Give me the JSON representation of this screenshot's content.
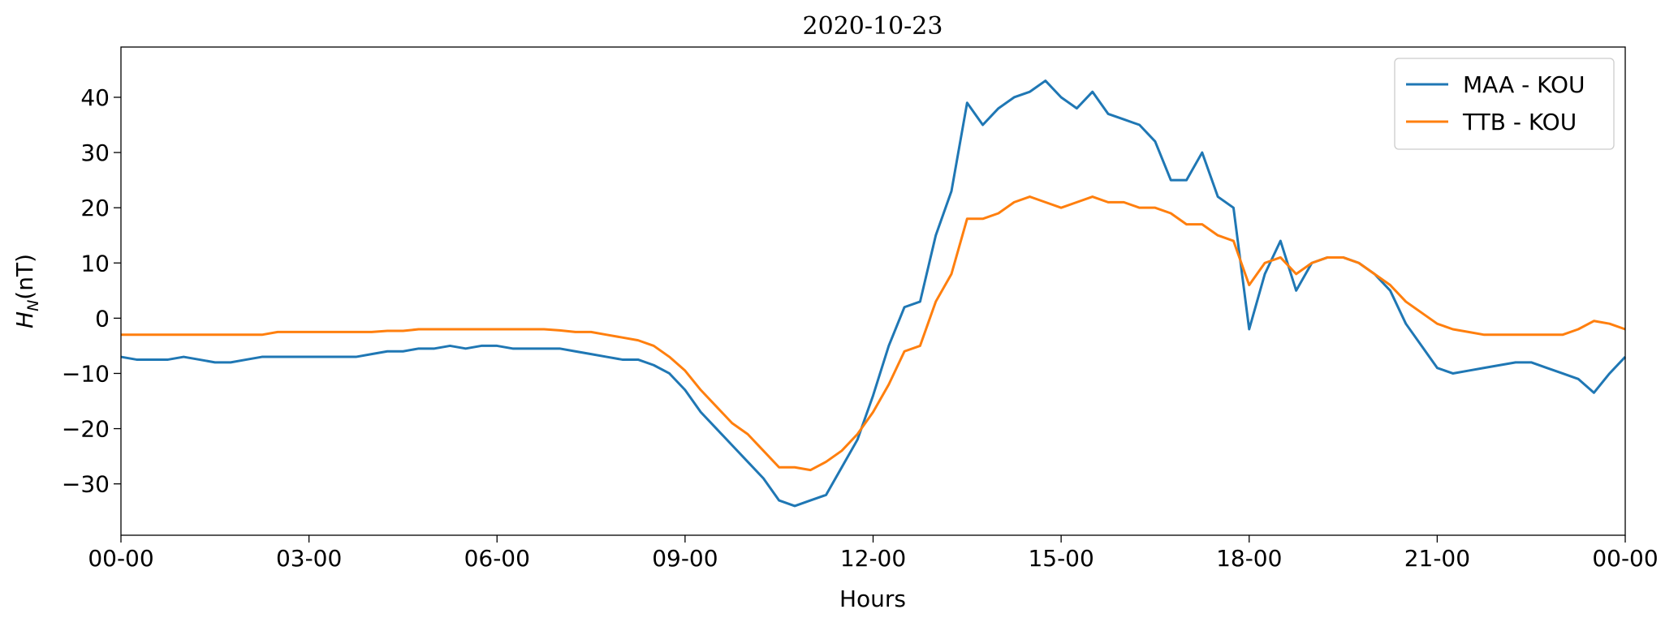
{
  "chart_data": {
    "type": "line",
    "title": "2020-10-23",
    "x_label": "Hours",
    "y_label": {
      "symbol": "H",
      "subscript": "N",
      "unit": "(nT)"
    },
    "legend": "upper right",
    "xlim": [
      0,
      24
    ],
    "ylim": [
      -39.3,
      49.1
    ],
    "xticks": [
      {
        "value": 0,
        "label": "00-00"
      },
      {
        "value": 3,
        "label": "03-00"
      },
      {
        "value": 6,
        "label": "06-00"
      },
      {
        "value": 9,
        "label": "09-00"
      },
      {
        "value": 12,
        "label": "12-00"
      },
      {
        "value": 15,
        "label": "15-00"
      },
      {
        "value": 18,
        "label": "18-00"
      },
      {
        "value": 21,
        "label": "21-00"
      },
      {
        "value": 24,
        "label": "00-00"
      }
    ],
    "yticks": [
      {
        "value": -30,
        "label": "−30"
      },
      {
        "value": -20,
        "label": "−20"
      },
      {
        "value": -10,
        "label": "−10"
      },
      0,
      10,
      20,
      30,
      40
    ],
    "x": [
      0,
      0.25,
      0.5,
      0.75,
      1,
      1.25,
      1.5,
      1.75,
      2,
      2.25,
      2.5,
      2.75,
      3,
      3.25,
      3.5,
      3.75,
      4,
      4.25,
      4.5,
      4.75,
      5,
      5.25,
      5.5,
      5.75,
      6,
      6.25,
      6.5,
      6.75,
      7,
      7.25,
      7.5,
      7.75,
      8,
      8.25,
      8.5,
      8.75,
      9,
      9.25,
      9.5,
      9.75,
      10,
      10.25,
      10.5,
      10.75,
      11,
      11.25,
      11.5,
      11.75,
      12,
      12.25,
      12.5,
      12.75,
      13,
      13.25,
      13.5,
      13.75,
      14,
      14.25,
      14.5,
      14.75,
      15,
      15.25,
      15.5,
      15.75,
      16,
      16.25,
      16.5,
      16.75,
      17,
      17.25,
      17.5,
      17.75,
      18,
      18.25,
      18.5,
      18.75,
      19,
      19.25,
      19.5,
      19.75,
      20,
      20.25,
      20.5,
      20.75,
      21,
      21.25,
      21.5,
      21.75,
      22,
      22.25,
      22.5,
      22.75,
      23,
      23.25,
      23.5,
      23.75,
      24
    ],
    "series": [
      {
        "name": "MAA - KOU",
        "color": "#1f77b4",
        "values": [
          -7,
          -7.5,
          -7.5,
          -7.5,
          -7,
          -7.5,
          -8,
          -8,
          -7.5,
          -7,
          -7,
          -7,
          -7,
          -7,
          -7,
          -7,
          -6.5,
          -6,
          -6,
          -5.5,
          -5.5,
          -5,
          -5.5,
          -5,
          -5,
          -5.5,
          -5.5,
          -5.5,
          -5.5,
          -6,
          -6.5,
          -7,
          -7.5,
          -7.5,
          -8.5,
          -10,
          -13,
          -17,
          -20,
          -23,
          -26,
          -29,
          -33,
          -34,
          -33,
          -32,
          -27,
          -22,
          -14,
          -5,
          2,
          3,
          15,
          23,
          39,
          35,
          38,
          40,
          41,
          43,
          40,
          38,
          41,
          37,
          36,
          35,
          32,
          25,
          25,
          30,
          22,
          20,
          -2,
          8,
          14,
          5,
          10,
          11,
          11,
          10,
          8,
          5,
          -1,
          -5,
          -9,
          -10,
          -9.5,
          -9,
          -8.5,
          -8,
          -8,
          -9,
          -10,
          -11,
          -13.5,
          -10,
          -7
        ]
      },
      {
        "name": "TTB - KOU",
        "color": "#ff7f0e",
        "values": [
          -3,
          -3,
          -3,
          -3,
          -3,
          -3,
          -3,
          -3,
          -3,
          -3,
          -2.5,
          -2.5,
          -2.5,
          -2.5,
          -2.5,
          -2.5,
          -2.5,
          -2.3,
          -2.3,
          -2,
          -2,
          -2,
          -2,
          -2,
          -2,
          -2,
          -2,
          -2,
          -2.2,
          -2.5,
          -2.5,
          -3,
          -3.5,
          -4,
          -5,
          -7,
          -9.5,
          -13,
          -16,
          -19,
          -21,
          -24,
          -27,
          -27,
          -27.5,
          -26,
          -24,
          -21,
          -17,
          -12,
          -6,
          -5,
          3,
          8,
          18,
          18,
          19,
          21,
          22,
          21,
          20,
          21,
          22,
          21,
          21,
          20,
          20,
          19,
          17,
          17,
          15,
          14,
          6,
          10,
          11,
          8,
          10,
          11,
          11,
          10,
          8,
          6,
          3,
          1,
          -1,
          -2,
          -2.5,
          -3,
          -3,
          -3,
          -3,
          -3,
          -3,
          -2,
          -0.5,
          -1,
          -2
        ]
      }
    ]
  }
}
